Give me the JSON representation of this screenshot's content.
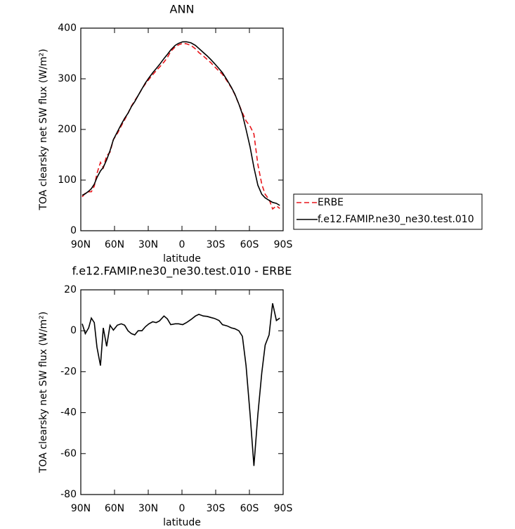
{
  "chart_data": [
    {
      "type": "line",
      "title": "ANN",
      "x_label": "latitude",
      "y_label": "TOA clearsky net SW flux (W/m²)",
      "x": [
        88.75,
        86,
        83,
        80.6,
        78,
        75.6,
        72.5,
        70,
        67,
        64,
        61,
        57.5,
        54,
        51,
        48,
        45,
        42,
        39,
        35.6,
        32.5,
        29.4,
        26,
        23,
        20,
        16,
        13,
        10,
        6,
        3,
        -0.6,
        -4,
        -8,
        -12,
        -15,
        -19,
        -22.5,
        -25.6,
        -29,
        -33,
        -36,
        -40,
        -44,
        -47,
        -50.6,
        -53.75,
        -57,
        -60.6,
        -64,
        -67.5,
        -71,
        -74,
        -77.5,
        -80.6,
        -84,
        -87
      ],
      "series": [
        {
          "name": "ERBE",
          "color": "#e8161b",
          "line_style": "dashed",
          "values": [
            67,
            74,
            77,
            77,
            88,
            113,
            135,
            124,
            148,
            155,
            180,
            192,
            207,
            219,
            232,
            246,
            257,
            267,
            280,
            290,
            299,
            308,
            316,
            323,
            333,
            342,
            354,
            363,
            367,
            370,
            369,
            366,
            359,
            352,
            345,
            338,
            332,
            324,
            315,
            309,
            296,
            282,
            269,
            250,
            233,
            217,
            206,
            191,
            131,
            92,
            72,
            62,
            43,
            49,
            44
          ]
        },
        {
          "name": "f.e12.FAMIP.ne30_ne30.test.010",
          "color": "#000000",
          "line_style": "solid",
          "values": [
            70,
            73,
            78,
            83,
            92,
            105,
            118,
            125,
            140,
            158,
            180,
            195,
            210,
            222,
            232,
            245,
            255,
            267,
            280,
            292,
            302,
            312,
            320,
            328,
            340,
            348,
            357,
            366,
            370,
            373,
            373,
            371,
            366,
            360,
            352,
            345,
            338,
            330,
            320,
            312,
            298,
            283,
            270,
            250,
            230,
            200,
            165,
            125,
            90,
            72,
            65,
            60,
            56,
            54,
            50
          ]
        }
      ],
      "xlim": [
        90,
        -90
      ],
      "xticks": [
        {
          "value": 90,
          "label": "90N"
        },
        {
          "value": 60,
          "label": "60N"
        },
        {
          "value": 30,
          "label": "30N"
        },
        0,
        {
          "value": -30,
          "label": "30S"
        },
        {
          "value": -60,
          "label": "60S"
        },
        {
          "value": -90,
          "label": "90S"
        }
      ],
      "ylim": [
        0,
        400
      ],
      "yticks": [
        0,
        100,
        200,
        300,
        400
      ],
      "legend": "right"
    },
    {
      "type": "line",
      "title": "f.e12.FAMIP.ne30_ne30.test.010 - ERBE",
      "x_label": "latitude",
      "y_label": "TOA clearsky net SW flux (W/m²)",
      "x": [
        88.75,
        86,
        83,
        80.6,
        78,
        75.6,
        72.5,
        70,
        67,
        64,
        61,
        57.5,
        54,
        51,
        48,
        45,
        42,
        39,
        35.6,
        32.5,
        29.4,
        26,
        23,
        20,
        16,
        13,
        10,
        6,
        3,
        -0.6,
        -4,
        -8,
        -12,
        -15,
        -19,
        -22.5,
        -25.6,
        -29,
        -33,
        -36,
        -40,
        -44,
        -47,
        -50.6,
        -53.75,
        -57,
        -60.6,
        -64,
        -67.5,
        -71,
        -74,
        -77.5,
        -80.6,
        -84,
        -87
      ],
      "values": [
        3.4,
        -1.4,
        1.4,
        6.2,
        4,
        -8,
        -17,
        1.4,
        -7.6,
        2.7,
        0.3,
        2.7,
        3.4,
        2.7,
        0,
        -1.4,
        -2,
        0,
        0,
        2,
        3.4,
        4.4,
        4,
        4.8,
        7.2,
        5.8,
        3,
        3.4,
        3.4,
        3,
        4,
        5.5,
        7.2,
        8,
        7.2,
        7,
        6.5,
        6,
        5,
        3,
        2.4,
        1.4,
        1,
        0,
        -2.7,
        -17,
        -41,
        -66,
        -41,
        -20.5,
        -7,
        -2,
        13.4,
        5,
        6.2
      ],
      "color": "#000000",
      "xlim": [
        90,
        -90
      ],
      "xticks": [
        {
          "value": 90,
          "label": "90N"
        },
        {
          "value": 60,
          "label": "60N"
        },
        {
          "value": 30,
          "label": "30N"
        },
        0,
        {
          "value": -30,
          "label": "30S"
        },
        {
          "value": -60,
          "label": "60S"
        },
        {
          "value": -90,
          "label": "90S"
        }
      ],
      "ylim": [
        -80,
        20
      ],
      "yticks": [
        -80,
        -60,
        -40,
        -20,
        0,
        20
      ]
    }
  ]
}
